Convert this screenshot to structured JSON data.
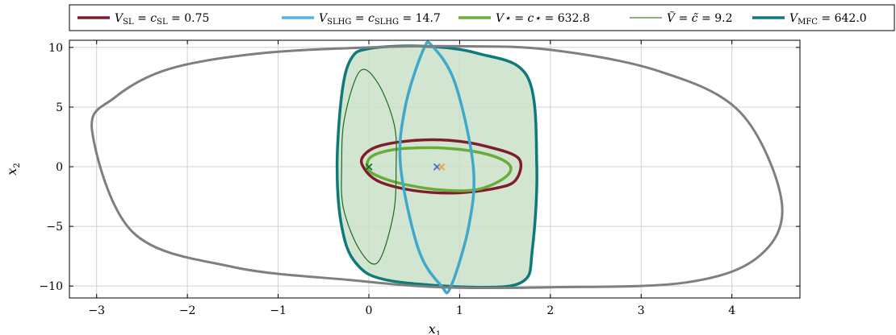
{
  "chart_data": {
    "type": "line",
    "title": "",
    "xlabel": "x",
    "xlabel_sub": "1",
    "ylabel": "x",
    "ylabel_sub": "2",
    "xlim": [
      -3.3,
      4.75
    ],
    "ylim": [
      -11.0,
      10.6
    ],
    "x_ticks": [
      -3,
      -2,
      -1,
      0,
      1,
      2,
      3,
      4
    ],
    "x_tick_labels": [
      "−3",
      "−2",
      "−1",
      "0",
      "1",
      "2",
      "3",
      "4"
    ],
    "y_ticks": [
      -10,
      -5,
      0,
      5,
      10
    ],
    "y_tick_labels": [
      "−10",
      "−5",
      "0",
      "5",
      "10"
    ],
    "grid": true,
    "legend_position": "top",
    "legend": [
      {
        "label": "V",
        "sub": "SL",
        "rest": " = c",
        "rest_sub": "SL",
        "value": " = 0.75",
        "color": "#7f1d2d",
        "width": 3.5
      },
      {
        "label": "V",
        "sub": "SLHG",
        "rest": " = c",
        "rest_sub": "SLHG",
        "value": " = 14.7",
        "color": "#4fb6e0",
        "width": 3.5
      },
      {
        "label": "V⋆",
        "sub": "",
        "rest": " = c⋆",
        "rest_sub": "",
        "value": " = 632.8",
        "color": "#6aab3a",
        "width": 3.5
      },
      {
        "label": "Ṽ",
        "sub": "",
        "rest": " = c̃",
        "rest_sub": "",
        "value": " = 9.2",
        "color": "#3d8a2e",
        "width": 1.2
      },
      {
        "label": "V",
        "sub": "MFC",
        "rest": "",
        "rest_sub": "",
        "value": " = 642.0",
        "color": "#0f7a7a",
        "width": 3.5
      }
    ],
    "series": [
      {
        "name": "V_SL = c_SL = 0.75",
        "kind": "ellipse",
        "color": "#7f1d2d",
        "width": 3.5,
        "fill": null,
        "points": [
          [
            -0.07,
            0.1
          ],
          [
            -0.05,
            1.0
          ],
          [
            0.12,
            1.75
          ],
          [
            0.5,
            2.2
          ],
          [
            0.9,
            2.2
          ],
          [
            1.3,
            1.7
          ],
          [
            1.65,
            0.7
          ],
          [
            1.62,
            -1.1
          ],
          [
            1.4,
            -1.8
          ],
          [
            0.95,
            -2.2
          ],
          [
            0.5,
            -2.0
          ],
          [
            0.1,
            -1.2
          ],
          [
            -0.07,
            0.1
          ]
        ]
      },
      {
        "name": "V⋆ = c⋆ = 632.8",
        "kind": "ellipse",
        "color": "#6aab3a",
        "width": 3.5,
        "fill": null,
        "points": [
          [
            -0.02,
            0.1
          ],
          [
            0.05,
            0.95
          ],
          [
            0.35,
            1.5
          ],
          [
            0.85,
            1.55
          ],
          [
            1.3,
            1.05
          ],
          [
            1.55,
            0.15
          ],
          [
            1.5,
            -0.9
          ],
          [
            1.2,
            -1.9
          ],
          [
            0.8,
            -1.95
          ],
          [
            0.35,
            -1.4
          ],
          [
            0.05,
            -0.6
          ],
          [
            -0.02,
            0.1
          ]
        ]
      },
      {
        "name": "Ṽ = c̃ = 9.2",
        "kind": "ellipse",
        "color": "#1e6b1e",
        "width": 1.2,
        "fill": null,
        "points": [
          [
            -0.3,
            0.0
          ],
          [
            -0.27,
            4.0
          ],
          [
            -0.1,
            8.0
          ],
          [
            0.1,
            7.0
          ],
          [
            0.28,
            3.5
          ],
          [
            0.3,
            0.0
          ],
          [
            0.27,
            -4.0
          ],
          [
            0.1,
            -8.0
          ],
          [
            -0.1,
            -7.0
          ],
          [
            -0.28,
            -3.5
          ],
          [
            -0.3,
            0.0
          ]
        ]
      },
      {
        "name": "V_SLHG = c_SLHG = 14.7",
        "kind": "ellipse",
        "color": "#3fa9c9",
        "width": 3.5,
        "fill": null,
        "points": [
          [
            0.35,
            0.0
          ],
          [
            0.4,
            5.0
          ],
          [
            0.6,
            9.8
          ],
          [
            0.7,
            10.1
          ],
          [
            0.95,
            7.0
          ],
          [
            1.15,
            0.0
          ],
          [
            1.1,
            -5.0
          ],
          [
            0.9,
            -10.1
          ],
          [
            0.8,
            -10.0
          ],
          [
            0.55,
            -7.0
          ],
          [
            0.35,
            0.0
          ]
        ]
      },
      {
        "name": "V_MFC = 642.0",
        "kind": "region",
        "color": "#0f7a7a",
        "width": 3.5,
        "fill": "#c9e0c8",
        "points": [
          [
            -0.35,
            0.0
          ],
          [
            -0.3,
            6.0
          ],
          [
            -0.2,
            9.0
          ],
          [
            0.0,
            9.9
          ],
          [
            0.6,
            10.1
          ],
          [
            1.2,
            9.5
          ],
          [
            1.75,
            7.5
          ],
          [
            1.85,
            0.0
          ],
          [
            1.8,
            -7.0
          ],
          [
            1.7,
            -9.6
          ],
          [
            1.2,
            -10.1
          ],
          [
            0.2,
            -9.5
          ],
          [
            -0.15,
            -8.0
          ],
          [
            -0.3,
            -5.0
          ],
          [
            -0.35,
            0.0
          ]
        ]
      },
      {
        "name": "outer level set",
        "kind": "ellipse",
        "color": "#7f7f7f",
        "width": 3.0,
        "fill": null,
        "points": [
          [
            -3.05,
            3.0
          ],
          [
            -2.8,
            5.8
          ],
          [
            -2.2,
            8.2
          ],
          [
            -1.2,
            9.5
          ],
          [
            0.0,
            10.0
          ],
          [
            1.0,
            10.1
          ],
          [
            2.0,
            9.8
          ],
          [
            3.2,
            8.0
          ],
          [
            4.1,
            4.5
          ],
          [
            4.55,
            -3.0
          ],
          [
            4.3,
            -7.5
          ],
          [
            3.5,
            -9.7
          ],
          [
            2.0,
            -10.1
          ],
          [
            0.8,
            -10.1
          ],
          [
            -0.2,
            -9.5
          ],
          [
            -1.5,
            -8.4
          ],
          [
            -2.6,
            -5.5
          ],
          [
            -3.05,
            3.0
          ]
        ]
      }
    ],
    "markers": [
      {
        "name": "origin marker",
        "x": 0.0,
        "y": 0.0,
        "symbol": "×",
        "color": "#1e6b1e"
      },
      {
        "name": "SLHG center",
        "x": 0.75,
        "y": 0.0,
        "symbol": "×",
        "color": "#3b6bd6"
      },
      {
        "name": "SL center",
        "x": 0.8,
        "y": 0.0,
        "symbol": "×",
        "color": "#e8a23a"
      }
    ]
  }
}
